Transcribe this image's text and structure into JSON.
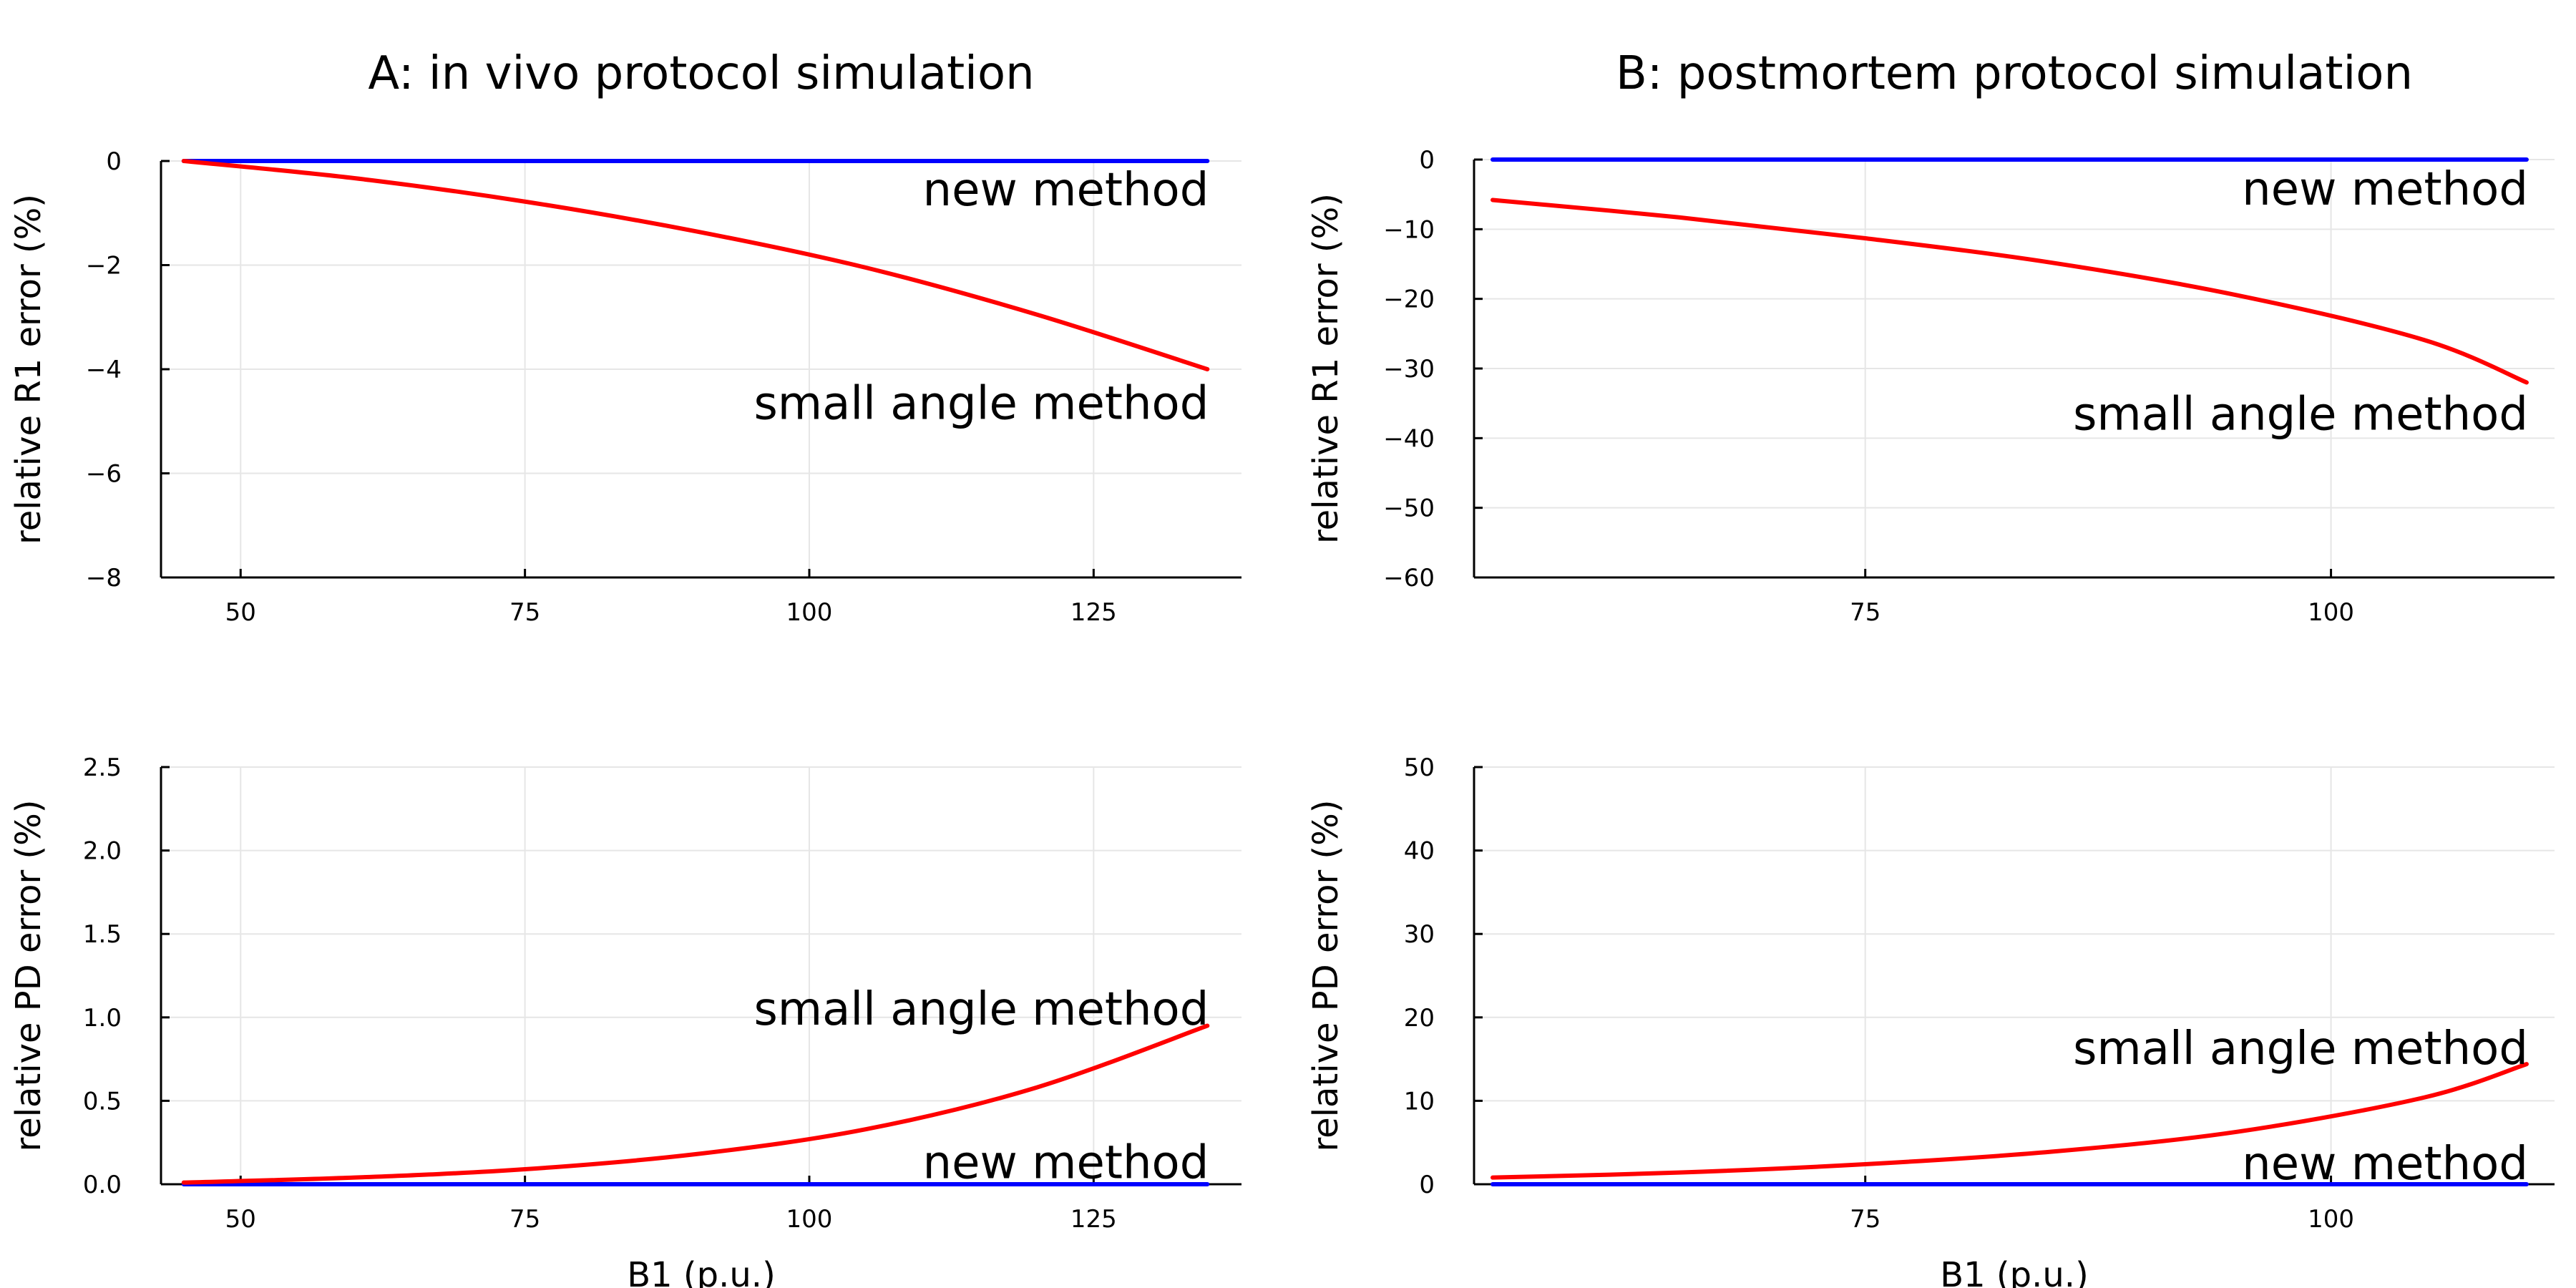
{
  "chart_data": [
    {
      "type": "line",
      "title": "A: in vivo protocol simulation",
      "xlabel": "",
      "ylabel": "relative R1 error (%)",
      "xlim": [
        43,
        138
      ],
      "ylim": [
        -8,
        0
      ],
      "xticks": [
        50,
        75,
        100,
        125
      ],
      "yticks": [
        -8,
        -6,
        -4,
        -2,
        0
      ],
      "xtick_labels": [
        "50",
        "75",
        "100",
        "125"
      ],
      "ytick_labels": [
        "−8",
        "−6",
        "−4",
        "−2",
        "0"
      ],
      "grid": true,
      "series": [
        {
          "color": "#0000ff",
          "x": [
            45,
            60,
            75,
            90,
            105,
            120,
            135
          ],
          "y": [
            0,
            0,
            0,
            0,
            0,
            0,
            0
          ]
        },
        {
          "color": "#ff0000",
          "x": [
            45,
            60,
            75,
            90,
            105,
            120,
            135
          ],
          "y": [
            0,
            -0.33,
            -0.78,
            -1.35,
            -2.05,
            -2.95,
            -4.0
          ]
        }
      ],
      "annotations": [
        {
          "text": "new method",
          "x": 135,
          "y": -0.55
        },
        {
          "text": "small angle method",
          "x": 135,
          "y": -4.65
        }
      ]
    },
    {
      "type": "line",
      "title": "B: postmortem protocol simulation",
      "xlabel": "",
      "ylabel": "relative R1 error (%)",
      "xlim": [
        54,
        112
      ],
      "ylim": [
        -60,
        0
      ],
      "xticks": [
        75,
        100
      ],
      "yticks": [
        -60,
        -50,
        -40,
        -30,
        -20,
        -10,
        0
      ],
      "xtick_labels": [
        "75",
        "100"
      ],
      "ytick_labels": [
        "−60",
        "−50",
        "−40",
        "−30",
        "−20",
        "−10",
        "0"
      ],
      "grid": true,
      "series": [
        {
          "color": "#0000ff",
          "x": [
            55,
            65,
            75,
            85,
            95,
            105,
            110.5
          ],
          "y": [
            0,
            0,
            0,
            0,
            0,
            0,
            0
          ]
        },
        {
          "color": "#ff0000",
          "x": [
            55,
            65,
            75,
            85,
            95,
            105,
            110.5
          ],
          "y": [
            -5.8,
            -8.3,
            -11.3,
            -14.8,
            -19.5,
            -25.9,
            -32.0
          ]
        }
      ],
      "annotations": [
        {
          "text": "new method",
          "x": 110.5,
          "y": -4.2
        },
        {
          "text": "small angle method",
          "x": 110.5,
          "y": -36.5
        }
      ]
    },
    {
      "type": "line",
      "title": "",
      "xlabel": "B1 (p.u.)",
      "ylabel": "relative PD error (%)",
      "xlim": [
        43,
        138
      ],
      "ylim": [
        0,
        2.5
      ],
      "xticks": [
        50,
        75,
        100,
        125
      ],
      "yticks": [
        0,
        0.5,
        1.0,
        1.5,
        2.0,
        2.5
      ],
      "xtick_labels": [
        "50",
        "75",
        "100",
        "125"
      ],
      "ytick_labels": [
        "0.0",
        "0.5",
        "1.0",
        "1.5",
        "2.0",
        "2.5"
      ],
      "grid": true,
      "series": [
        {
          "color": "#0000ff",
          "x": [
            45,
            60,
            75,
            90,
            105,
            120,
            135
          ],
          "y": [
            0,
            0,
            0,
            0,
            0,
            0,
            0
          ]
        },
        {
          "color": "#ff0000",
          "x": [
            45,
            60,
            75,
            90,
            105,
            120,
            135
          ],
          "y": [
            0.01,
            0.04,
            0.09,
            0.18,
            0.33,
            0.58,
            0.95
          ]
        }
      ],
      "annotations": [
        {
          "text": "small angle method",
          "x": 135,
          "y": 1.05
        },
        {
          "text": "new method",
          "x": 135,
          "y": 0.13
        }
      ]
    },
    {
      "type": "line",
      "title": "",
      "xlabel": "B1 (p.u.)",
      "ylabel": "relative PD error (%)",
      "xlim": [
        54,
        112
      ],
      "ylim": [
        0,
        50
      ],
      "xticks": [
        75,
        100
      ],
      "yticks": [
        0,
        10,
        20,
        30,
        40,
        50
      ],
      "xtick_labels": [
        "75",
        "100"
      ],
      "ytick_labels": [
        "0",
        "10",
        "20",
        "30",
        "40",
        "50"
      ],
      "grid": true,
      "series": [
        {
          "color": "#0000ff",
          "x": [
            55,
            65,
            75,
            85,
            95,
            105,
            110.5
          ],
          "y": [
            0,
            0,
            0,
            0,
            0,
            0,
            0
          ]
        },
        {
          "color": "#ff0000",
          "x": [
            55,
            65,
            75,
            85,
            95,
            105,
            110.5
          ],
          "y": [
            0.8,
            1.4,
            2.4,
            3.9,
            6.3,
            10.4,
            14.4
          ]
        }
      ],
      "annotations": [
        {
          "text": "small angle method",
          "x": 110.5,
          "y": 16.3
        },
        {
          "text": "new method",
          "x": 110.5,
          "y": 2.5
        }
      ]
    }
  ]
}
